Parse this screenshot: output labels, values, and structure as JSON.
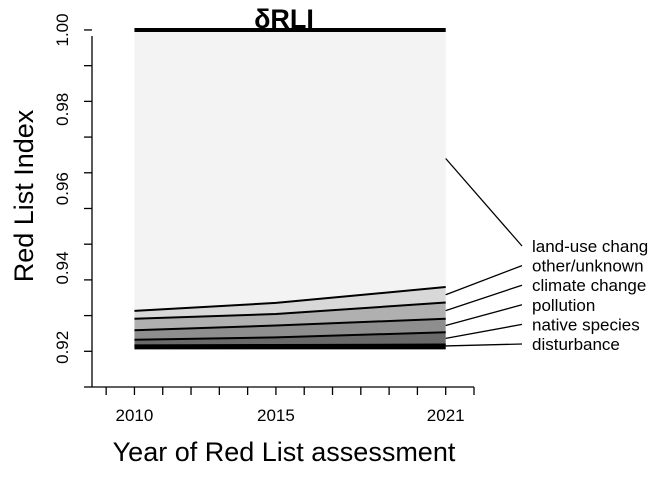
{
  "chart_data": {
    "type": "area",
    "title": "δRLI",
    "xlabel": "Year of Red List assessment",
    "ylabel": "Red List Index",
    "x": [
      2010,
      2015,
      2021
    ],
    "xlim": [
      2008.5,
      2022
    ],
    "ylim": [
      0.91,
      1.001
    ],
    "x_ticks": [
      2010,
      2015,
      2021
    ],
    "x_tick_labels": [
      "2010",
      "2015",
      "2021"
    ],
    "y_ticks": [
      0.92,
      0.94,
      0.96,
      0.98,
      1.0
    ],
    "y_tick_labels": [
      "0.92",
      "0.94",
      "0.96",
      "0.98",
      "1.00"
    ],
    "baseline": [
      0.92,
      0.92,
      0.92
    ],
    "top_line": [
      1.0,
      1.0,
      1.0
    ],
    "series": [
      {
        "name": "disturbance",
        "values": [
          0.9205,
          0.9206,
          0.9207
        ],
        "color": "#303030"
      },
      {
        "name": "native species",
        "values": [
          0.9219,
          0.9225,
          0.9238
        ],
        "color": "#6a6a6a"
      },
      {
        "name": "pollution",
        "values": [
          0.9243,
          0.9255,
          0.9272
        ],
        "color": "#8e8e8e"
      },
      {
        "name": "climate change",
        "values": [
          0.9272,
          0.9284,
          0.9313
        ],
        "color": "#b0b0b0"
      },
      {
        "name": "other/unknown",
        "values": [
          0.9292,
          0.9312,
          0.9352
        ],
        "color": "#d8d8d8"
      },
      {
        "name": "land-use chang",
        "values": [
          1.0,
          1.0,
          1.0
        ],
        "color": "#f3f3f3"
      }
    ],
    "legend_position": "right",
    "grid": false
  }
}
